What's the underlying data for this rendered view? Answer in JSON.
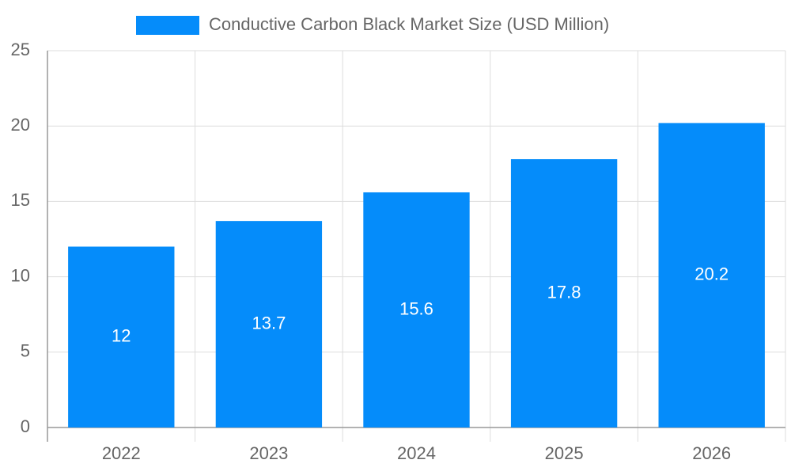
{
  "chart_data": {
    "type": "bar",
    "categories": [
      "2022",
      "2023",
      "2024",
      "2025",
      "2026"
    ],
    "series": [
      {
        "name": "Conductive Carbon Black Market Size (USD Million)",
        "color": "#058cfa",
        "values": [
          12,
          13.7,
          15.6,
          17.8,
          20.2
        ]
      }
    ],
    "ylim": [
      0,
      25
    ],
    "yticks": [
      0,
      5,
      10,
      15,
      20,
      25
    ],
    "grid": true,
    "legend": "top"
  }
}
